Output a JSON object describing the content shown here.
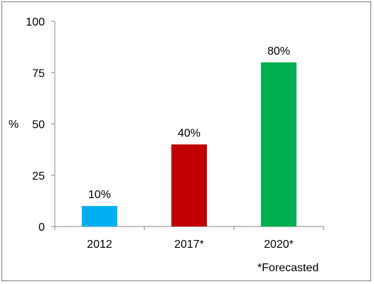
{
  "chart_data": {
    "type": "bar",
    "categories": [
      "2012",
      "2017*",
      "2020*"
    ],
    "values": [
      10,
      40,
      80
    ],
    "data_labels": [
      "10%",
      "40%",
      "80%"
    ],
    "colors": [
      "#00b0f0",
      "#c00000",
      "#00b050"
    ],
    "ylabel": "%",
    "ylim": [
      0,
      100
    ],
    "yticks": [
      0,
      25,
      50,
      75,
      100
    ],
    "ytick_labels": [
      "0",
      "25",
      "50",
      "75",
      "100"
    ],
    "grid": false,
    "footnote": "*Forecasted"
  }
}
